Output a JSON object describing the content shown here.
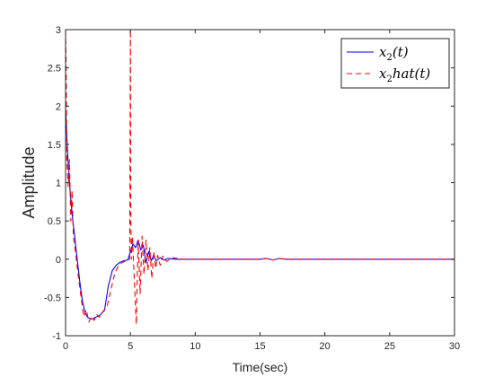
{
  "chart_data": {
    "type": "line",
    "title": "",
    "xlabel": "Time(sec)",
    "ylabel": "Amplitude",
    "xlim": [
      0,
      30
    ],
    "ylim": [
      -1,
      3
    ],
    "xticks": [
      "0",
      "5",
      "10",
      "15",
      "20",
      "25",
      "30"
    ],
    "yticks": [
      "-1",
      "-0.5",
      "0",
      "0.5",
      "1",
      "1.5",
      "2",
      "2.5",
      "3"
    ],
    "grid": false,
    "legend_position": "top-right",
    "series": [
      {
        "name": "x_2(t)",
        "color": "#0000ff",
        "style": "solid",
        "x": [
          0,
          0.1,
          0.2,
          0.3,
          0.5,
          0.7,
          0.9,
          1.1,
          1.3,
          1.5,
          1.7,
          1.9,
          2.1,
          2.3,
          2.6,
          3.0,
          3.3,
          3.6,
          3.9,
          4.2,
          4.5,
          4.8,
          5.0,
          5.2,
          5.4,
          5.6,
          5.8,
          6.0,
          6.2,
          6.4,
          6.6,
          6.8,
          7.0,
          7.3,
          7.6,
          7.9,
          8.5,
          9.5,
          11,
          13,
          15,
          15.5,
          16,
          16.5,
          17,
          18,
          20,
          25,
          30
        ],
        "y": [
          2.0,
          1.6,
          1.25,
          1.0,
          0.6,
          0.3,
          0.0,
          -0.3,
          -0.55,
          -0.7,
          -0.76,
          -0.78,
          -0.78,
          -0.76,
          -0.74,
          -0.67,
          -0.35,
          -0.15,
          -0.08,
          -0.04,
          -0.02,
          -0.01,
          0.1,
          0.2,
          0.15,
          0.25,
          0.12,
          0.18,
          -0.05,
          0.1,
          -0.02,
          0.05,
          -0.02,
          0.02,
          -0.01,
          0.01,
          0.0,
          0.0,
          0.0,
          0.0,
          0.0,
          0.01,
          -0.01,
          0.01,
          0.0,
          0.0,
          0.0,
          0.0,
          0.0
        ]
      },
      {
        "name": "x_2hat(t)",
        "color": "#ff0000",
        "style": "dashed",
        "x": [
          0,
          0.05,
          0.1,
          0.2,
          0.3,
          0.4,
          0.5,
          0.6,
          0.8,
          1.0,
          1.2,
          1.4,
          1.6,
          1.8,
          2.0,
          2.2,
          2.4,
          2.6,
          2.9,
          3.2,
          3.5,
          3.8,
          4.1,
          4.4,
          4.7,
          4.95,
          5.0,
          5.03,
          5.08,
          5.15,
          5.3,
          5.45,
          5.6,
          5.75,
          5.9,
          6.05,
          6.2,
          6.35,
          6.5,
          6.65,
          6.8,
          6.95,
          7.1,
          7.3,
          7.5,
          7.8,
          8.2,
          9,
          10,
          12,
          15,
          15.5,
          16,
          16.5,
          17,
          18,
          20,
          25,
          30
        ],
        "y": [
          3.0,
          2.4,
          1.3,
          0.95,
          1.3,
          0.5,
          0.9,
          0.3,
          0.05,
          -0.25,
          -0.5,
          -0.75,
          -0.66,
          -0.82,
          -0.75,
          -0.8,
          -0.72,
          -0.76,
          -0.68,
          -0.62,
          -0.4,
          -0.18,
          -0.08,
          -0.04,
          -0.02,
          0.0,
          3.0,
          0.5,
          0.0,
          0.3,
          -0.25,
          -0.85,
          0.25,
          -0.45,
          0.3,
          -0.2,
          0.25,
          -0.15,
          0.15,
          -0.25,
          0.1,
          -0.12,
          0.05,
          -0.08,
          0.04,
          -0.03,
          0.02,
          0.0,
          0.0,
          0.0,
          0.0,
          0.01,
          -0.01,
          0.01,
          0.0,
          0.0,
          0.0,
          0.0,
          0.0
        ]
      }
    ]
  }
}
